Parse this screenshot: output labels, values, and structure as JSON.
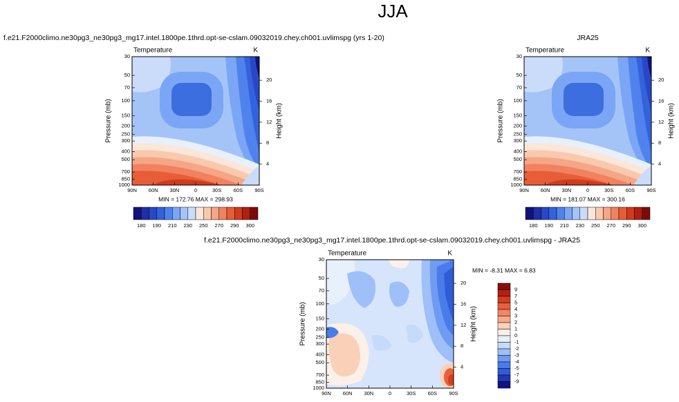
{
  "title": "JJA",
  "chart_data": [
    {
      "type": "contour",
      "title": "f.e21.F2000climo.ne30pg3_ne30pg3_mg17.intel.1800pe.1thrd.opt-se-cslam.09032019.chey.ch001.uvlimspg (yrs 1-20)",
      "label": "Temperature",
      "units": "K",
      "ylabel": "Pressure (mb)",
      "y2label": "Height (km)",
      "ylog": true,
      "ylim": [
        30,
        1000
      ],
      "yticks": [
        30,
        50,
        70,
        100,
        150,
        200,
        250,
        300,
        400,
        500,
        700,
        850,
        1000
      ],
      "y2lim": [
        0,
        24.5
      ],
      "y2ticks": [
        4,
        8,
        12,
        16,
        20
      ],
      "xlim": [
        90,
        -90
      ],
      "xticks": [
        {
          "value": 90,
          "label": "90N"
        },
        {
          "value": 60,
          "label": "60N"
        },
        {
          "value": 30,
          "label": "30N"
        },
        0,
        {
          "value": -30,
          "label": "30S"
        },
        {
          "value": -60,
          "label": "60S"
        },
        {
          "value": -90,
          "label": "90S"
        }
      ],
      "stats": "MIN = 172.76  MAX = 298.93",
      "colorbar": {
        "orientation": "horizontal",
        "colors": [
          "#12127a",
          "#1f2fa8",
          "#2848c8",
          "#3462dc",
          "#4f82ec",
          "#7aa6f5",
          "#a4c4f8",
          "#cadcfa",
          "#fbe6da",
          "#f9c9ae",
          "#f5a686",
          "#f1825f",
          "#e65d38",
          "#d23a1c",
          "#b01f10",
          "#7d0a0a"
        ],
        "ticks": [
          180,
          190,
          210,
          230,
          250,
          270,
          290,
          300
        ]
      }
    },
    {
      "type": "contour",
      "title": "JRA25",
      "label": "Temperature",
      "units": "K",
      "ylabel": "Pressure (mb)",
      "y2label": "Height (km)",
      "ylog": true,
      "ylim": [
        30,
        1000
      ],
      "yticks": [
        30,
        50,
        70,
        100,
        150,
        200,
        250,
        300,
        400,
        500,
        700,
        850,
        1000
      ],
      "y2lim": [
        0,
        24.5
      ],
      "y2ticks": [
        4,
        8,
        12,
        16,
        20
      ],
      "xlim": [
        90,
        -90
      ],
      "xticks": [
        {
          "value": 90,
          "label": "90N"
        },
        {
          "value": 60,
          "label": "60N"
        },
        {
          "value": 30,
          "label": "30N"
        },
        0,
        {
          "value": -30,
          "label": "30S"
        },
        {
          "value": -60,
          "label": "60S"
        },
        {
          "value": -90,
          "label": "90S"
        }
      ],
      "stats": "MIN = 181.07  MAX = 300.16",
      "colorbar": {
        "orientation": "horizontal",
        "colors": [
          "#12127a",
          "#1f2fa8",
          "#2848c8",
          "#3462dc",
          "#4f82ec",
          "#7aa6f5",
          "#a4c4f8",
          "#cadcfa",
          "#fbe6da",
          "#f9c9ae",
          "#f5a686",
          "#f1825f",
          "#e65d38",
          "#d23a1c",
          "#b01f10",
          "#7d0a0a"
        ],
        "ticks": [
          180,
          190,
          210,
          230,
          250,
          270,
          290,
          300
        ]
      }
    },
    {
      "type": "contour",
      "title": "f.e21.F2000climo.ne30pg3_ne30pg3_mg17.intel.1800pe.1thrd.opt-se-cslam.09032019.chey.ch001.uvlimspg - JRA25",
      "label": "Temperature",
      "units": "K",
      "ylabel": "Pressure (mb)",
      "y2label": "Height (km)",
      "ylog": true,
      "ylim": [
        30,
        1000
      ],
      "yticks": [
        30,
        50,
        70,
        100,
        150,
        200,
        250,
        300,
        400,
        500,
        700,
        850,
        1000
      ],
      "y2lim": [
        0,
        24.5
      ],
      "y2ticks": [
        4,
        8,
        12,
        16,
        20
      ],
      "xlim": [
        90,
        -90
      ],
      "xticks": [
        {
          "value": 90,
          "label": "90N"
        },
        {
          "value": 60,
          "label": "60N"
        },
        {
          "value": 30,
          "label": "30N"
        },
        0,
        {
          "value": -30,
          "label": "30S"
        },
        {
          "value": -60,
          "label": "60S"
        },
        {
          "value": -90,
          "label": "90S"
        }
      ],
      "stats": "MIN = -8.31  MAX =  6.83",
      "colorbar": {
        "orientation": "vertical",
        "colors": [
          "#8b0d0d",
          "#b42012",
          "#d43d1e",
          "#e8603c",
          "#f28762",
          "#f6ab8c",
          "#fad0b8",
          "#fdf0e8",
          "#e8f0fc",
          "#c6dafa",
          "#9ebff7",
          "#6f9cf2",
          "#4a7ce9",
          "#2f5cd8",
          "#2038b4",
          "#101583"
        ],
        "ticks": [
          9,
          7,
          5,
          4,
          3,
          2,
          1,
          0,
          -1,
          -2,
          -3,
          -4,
          -5,
          -7,
          -9
        ]
      }
    }
  ]
}
